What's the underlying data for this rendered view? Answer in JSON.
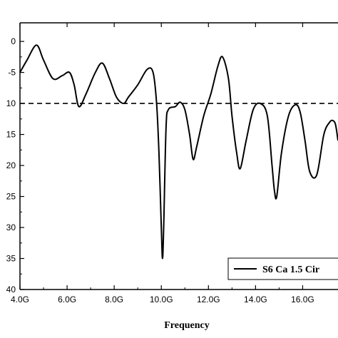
{
  "chart_data": {
    "type": "line",
    "title": "",
    "xlabel": "Frequency",
    "ylabel": "",
    "xlim": [
      4.0,
      17.5
    ],
    "ylim": [
      -40,
      3
    ],
    "x_ticks": [
      {
        "value": 4,
        "label": "4.0G"
      },
      {
        "value": 6,
        "label": "6.0G"
      },
      {
        "value": 8,
        "label": "8.0G"
      },
      {
        "value": 10,
        "label": "10.0G"
      },
      {
        "value": 12,
        "label": "12.0G"
      },
      {
        "value": 14,
        "label": "14.0G"
      },
      {
        "value": 16,
        "label": "16.0G"
      }
    ],
    "y_ticks": [
      {
        "value": 0,
        "label": "0"
      },
      {
        "value": -5,
        "label": "-5"
      },
      {
        "value": -10,
        "label": "10"
      },
      {
        "value": -15,
        "label": "15"
      },
      {
        "value": -20,
        "label": "20"
      },
      {
        "value": -25,
        "label": "25"
      },
      {
        "value": -30,
        "label": "30"
      },
      {
        "value": -35,
        "label": "35"
      },
      {
        "value": -40,
        "label": "40"
      }
    ],
    "reference_line": {
      "y": -10,
      "style": "dashed"
    },
    "legend": {
      "position": "bottom-right",
      "entries": [
        "S6 Ca 1.5 Cir"
      ]
    },
    "series": [
      {
        "name": "S6 Ca 1.5 Cir",
        "x": [
          4.0,
          4.3,
          4.7,
          5.0,
          5.4,
          5.8,
          6.1,
          6.3,
          6.5,
          6.8,
          7.2,
          7.5,
          7.8,
          8.1,
          8.4,
          8.6,
          9.0,
          9.4,
          9.65,
          9.8,
          9.9,
          10.0,
          10.05,
          10.1,
          10.2,
          10.3,
          10.6,
          10.8,
          11.0,
          11.2,
          11.35,
          11.5,
          11.8,
          12.1,
          12.4,
          12.6,
          12.85,
          13.0,
          13.2,
          13.35,
          13.6,
          13.9,
          14.2,
          14.5,
          14.7,
          14.8,
          14.9,
          15.1,
          15.4,
          15.7,
          15.9,
          16.1,
          16.3,
          16.6,
          16.9,
          17.15,
          17.3,
          17.4,
          17.5
        ],
        "values": [
          -5,
          -3,
          -0.6,
          -3,
          -6,
          -5.5,
          -5,
          -7,
          -10.5,
          -8.5,
          -5,
          -3.5,
          -6,
          -9,
          -10,
          -9,
          -7,
          -4.5,
          -5,
          -10,
          -18,
          -30,
          -35,
          -30,
          -14,
          -11,
          -10.5,
          -9.8,
          -11,
          -15,
          -19,
          -17,
          -12,
          -8.5,
          -4,
          -2.5,
          -6,
          -12,
          -18,
          -20.5,
          -16,
          -11,
          -10,
          -12,
          -20,
          -24,
          -25,
          -18,
          -12,
          -10.2,
          -11.5,
          -16,
          -21,
          -21.5,
          -15,
          -13,
          -12.8,
          -13.5,
          -16
        ]
      }
    ]
  }
}
